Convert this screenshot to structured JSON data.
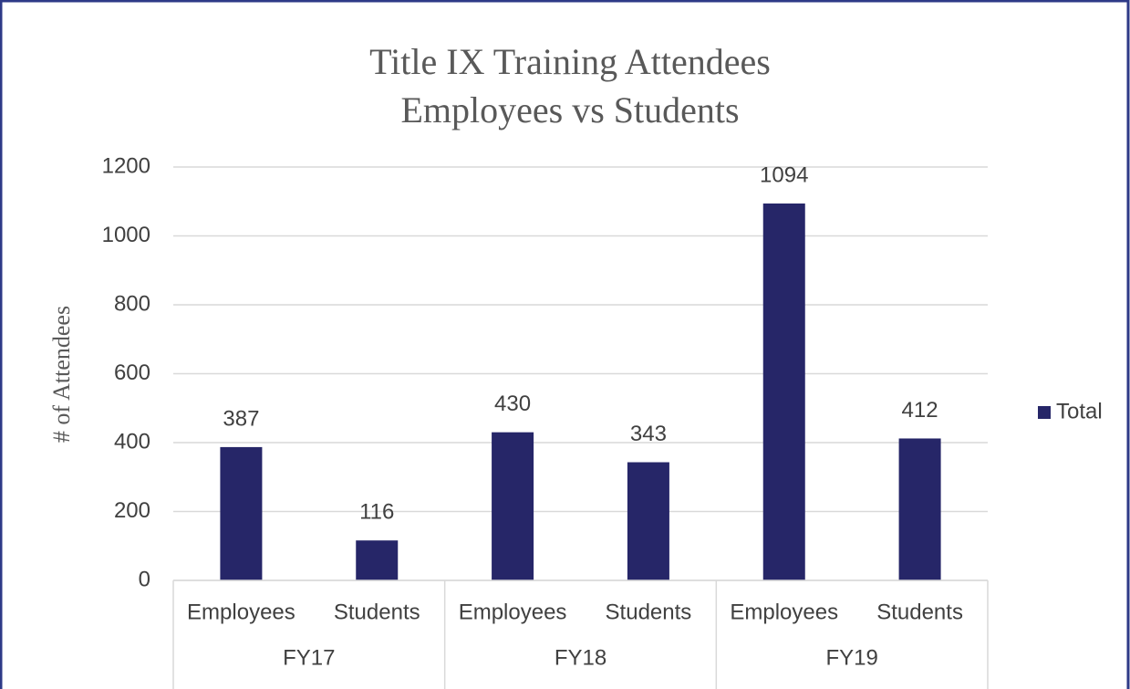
{
  "chart_data": {
    "type": "bar",
    "title": "Title IX Training Attendees",
    "subtitle": "Employees vs Students",
    "y_axis_label": "# of Attendees",
    "categories": [
      "Employees",
      "Students",
      "Employees",
      "Students",
      "Employees",
      "Students"
    ],
    "category_groups": [
      "FY17",
      "FY18",
      "FY19"
    ],
    "series": [
      {
        "name": "Total",
        "color": "#262668",
        "values": [
          387,
          116,
          430,
          343,
          1094,
          412
        ]
      }
    ],
    "ylim": [
      0,
      1200
    ],
    "yticks": [
      0,
      200,
      400,
      600,
      800,
      1000,
      1200
    ],
    "grid": true,
    "legend": "right"
  }
}
